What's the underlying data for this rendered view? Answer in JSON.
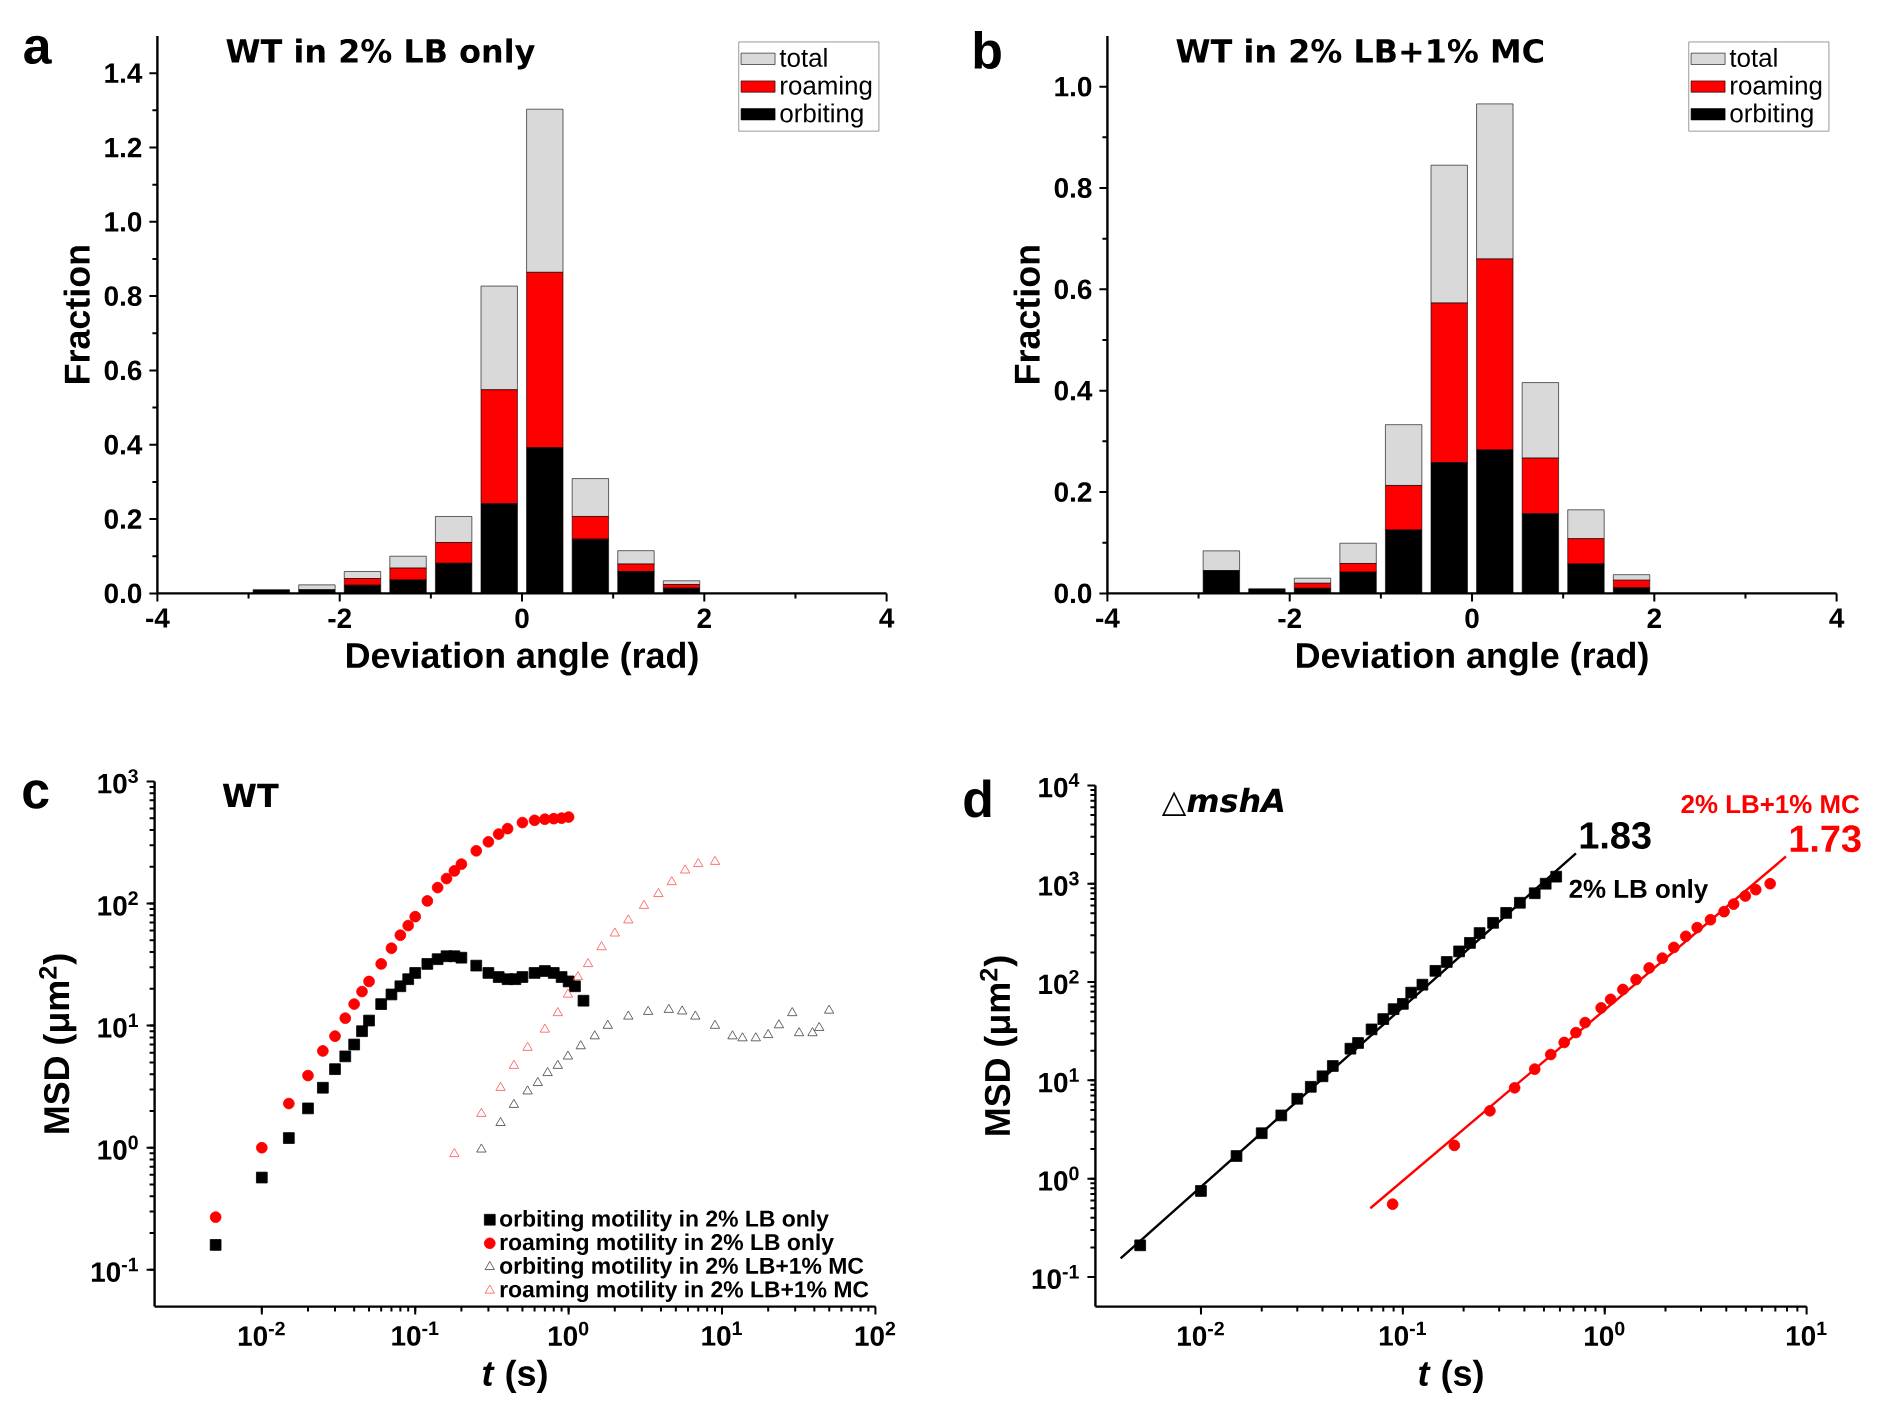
{
  "chart_data": [
    {
      "type": "bar",
      "title": "WT in 2% LB only",
      "xlabel": "Deviation angle (rad)",
      "ylabel": "Fraction",
      "annotations": [
        "a"
      ],
      "x": [
        -2.75,
        -2.25,
        -1.75,
        -1.25,
        -0.75,
        -0.25,
        0.25,
        0.75,
        1.25,
        1.75
      ],
      "series": [
        {
          "name": "orbiting",
          "color": "#000000",
          "values": [
            0.01,
            0.01,
            0.022,
            0.036,
            0.081,
            0.241,
            0.392,
            0.146,
            0.059,
            0.014
          ]
        },
        {
          "name": "roaming",
          "color": "#ff0000",
          "values": [
            null,
            null,
            0.018,
            0.032,
            0.056,
            0.307,
            0.472,
            0.061,
            0.02,
            0.01
          ]
        },
        {
          "name": "total",
          "color": "#d9d9d9",
          "values": [
            null,
            0.013,
            0.019,
            0.032,
            0.07,
            0.279,
            0.439,
            0.102,
            0.036,
            0.01
          ]
        }
      ],
      "stacked": true,
      "xlim": [
        -4,
        4
      ],
      "xticks": [
        -4,
        -2,
        0,
        2,
        4
      ],
      "ylim": [
        0,
        1.5
      ],
      "yticks": [
        {
          "value": 0,
          "label": "0.0"
        },
        0.2,
        0.4,
        0.6,
        0.8,
        {
          "value": 1,
          "label": "1.0"
        },
        1.2,
        1.4
      ],
      "legend": "top right"
    },
    {
      "type": "bar",
      "title": "WT in 2% LB+1% MC",
      "xlabel": "Deviation angle (rad)",
      "ylabel": "Fraction",
      "annotations": [
        "b"
      ],
      "x": [
        -2.75,
        -2.25,
        -1.75,
        -1.25,
        -0.75,
        -0.25,
        0.25,
        0.75,
        1.25,
        1.75
      ],
      "series": [
        {
          "name": "orbiting",
          "color": "#000000",
          "values": [
            0.045,
            0.009,
            0.01,
            0.042,
            0.125,
            0.258,
            0.283,
            0.157,
            0.058,
            0.011
          ]
        },
        {
          "name": "roaming",
          "color": "#ff0000",
          "values": [
            null,
            null,
            0.01,
            0.017,
            0.088,
            0.315,
            0.377,
            0.11,
            0.05,
            0.015
          ]
        },
        {
          "name": "total",
          "color": "#d9d9d9",
          "values": [
            0.039,
            null,
            0.01,
            0.04,
            0.12,
            0.272,
            0.306,
            0.149,
            0.057,
            0.011
          ]
        }
      ],
      "stacked": true,
      "xlim": [
        -4,
        4
      ],
      "xticks": [
        -4,
        -2,
        0,
        2,
        4
      ],
      "ylim": [
        0,
        1.1
      ],
      "yticks": [
        {
          "value": 0,
          "label": "0.0"
        },
        0.2,
        0.4,
        0.6,
        0.8,
        {
          "value": 1,
          "label": "1.0"
        }
      ],
      "legend": "top right"
    },
    {
      "type": "scatter",
      "title": "WT",
      "xlabel": "*t* (s)",
      "ylabel": "MSD (μm$^{2}$)",
      "annotations": [
        "c"
      ],
      "log": "xy",
      "series": [
        {
          "name": "orbiting motility in 2% LB only",
          "color": "#000000",
          "marker": "square",
          "x": [
            0.005,
            0.01,
            0.015,
            0.02,
            0.025,
            0.03,
            0.035,
            0.04,
            0.045,
            0.05,
            0.06,
            0.07,
            0.08,
            0.09,
            0.1,
            0.12,
            0.14,
            0.16,
            0.18,
            0.2,
            0.25,
            0.3,
            0.35,
            0.4,
            0.45,
            0.5,
            0.6,
            0.7,
            0.8,
            0.9,
            1.0,
            1.1,
            1.25
          ],
          "values": [
            0.16,
            0.57,
            1.2,
            2.1,
            3.1,
            4.4,
            5.6,
            7,
            9,
            11,
            15,
            18,
            21,
            24,
            27,
            32,
            35,
            37,
            37,
            36,
            31,
            27,
            25,
            24,
            24,
            25,
            27,
            28,
            27,
            25,
            23,
            21,
            16
          ]
        },
        {
          "name": "roaming motility in 2% LB only",
          "color": "#ff0000",
          "marker": "circle",
          "x": [
            0.005,
            0.01,
            0.015,
            0.02,
            0.025,
            0.03,
            0.035,
            0.04,
            0.045,
            0.05,
            0.06,
            0.07,
            0.08,
            0.09,
            0.1,
            0.12,
            0.14,
            0.16,
            0.18,
            0.2,
            0.25,
            0.3,
            0.35,
            0.4,
            0.5,
            0.6,
            0.7,
            0.8,
            0.9,
            1.0
          ],
          "values": [
            0.27,
            1.0,
            2.3,
            3.9,
            6.2,
            8.2,
            11.5,
            15,
            19,
            23,
            32,
            43,
            55,
            66,
            78,
            105,
            135,
            160,
            185,
            210,
            270,
            320,
            370,
            410,
            460,
            480,
            490,
            495,
            500,
            510
          ]
        },
        {
          "name": "orbiting motility in 2% LB+1% MC",
          "color": "#404040",
          "marker": "triangle",
          "x": [
            0.27,
            0.36,
            0.44,
            0.54,
            0.63,
            0.73,
            0.85,
            0.99,
            1.2,
            1.48,
            1.8,
            2.45,
            3.3,
            4.5,
            5.5,
            6.7,
            9.0,
            11.7,
            13.6,
            16.6,
            20,
            23.5,
            28.7,
            31.8,
            38.9,
            43,
            49.9
          ],
          "values": [
            0.97,
            1.6,
            2.25,
            2.9,
            3.4,
            4.1,
            4.7,
            5.6,
            6.8,
            8.2,
            10,
            11.9,
            13,
            13.5,
            13.1,
            11.9,
            10,
            8.2,
            7.9,
            7.9,
            8.4,
            10.1,
            12.7,
            8.7,
            8.7,
            9.6,
            13.3
          ]
        },
        {
          "name": "roaming motility in 2% LB+1% MC",
          "color": "#ff5050",
          "marker": "triangle",
          "x": [
            0.18,
            0.27,
            0.36,
            0.44,
            0.54,
            0.7,
            0.85,
            0.99,
            1.15,
            1.34,
            1.64,
            2.0,
            2.45,
            3.1,
            3.85,
            4.7,
            5.75,
            7.0,
            9.0
          ],
          "values": [
            0.89,
            1.9,
            3.1,
            4.7,
            6.6,
            9.3,
            12.7,
            18,
            25,
            32,
            44,
            57,
            73,
            96,
            120,
            150,
            187,
            211,
            220
          ]
        }
      ],
      "xlim": [
        0.002,
        100
      ],
      "xticks": [
        {
          "value": 0.01,
          "label": "10$^{-2}$"
        },
        {
          "value": 0.1,
          "label": "10$^{-1}$"
        },
        {
          "value": 1,
          "label": "10$^{0}$"
        },
        {
          "value": 10,
          "label": "10$^{1}$"
        },
        {
          "value": 100,
          "label": "10$^{2}$"
        }
      ],
      "ylim": [
        0.05,
        1000
      ],
      "yticks": [
        {
          "value": 0.1,
          "label": "10$^{-1}$"
        },
        {
          "value": 1,
          "label": "10$^{0}$"
        },
        {
          "value": 10,
          "label": "10$^{1}$"
        },
        {
          "value": 100,
          "label": "10$^{2}$"
        },
        {
          "value": 1000,
          "label": "10$^{3}$"
        }
      ],
      "legend": "bottom right"
    },
    {
      "type": "scatter",
      "title": "△*mshA*",
      "xlabel": "*t* (s)",
      "ylabel": "MSD (μm$^{2}$)",
      "annotations": [
        "d"
      ],
      "log": "xy",
      "series": [
        {
          "name": "1.83",
          "type": "line",
          "color": "#000000",
          "x": [
            0.004,
            0.72
          ],
          "values": [
            0.155,
            2040
          ]
        },
        {
          "name": "2% LB only",
          "color": "#000000",
          "marker": "square",
          "x": [
            0.005,
            0.01,
            0.015,
            0.02,
            0.025,
            0.03,
            0.035,
            0.04,
            0.045,
            0.055,
            0.06,
            0.07,
            0.08,
            0.09,
            0.1,
            0.11,
            0.125,
            0.145,
            0.165,
            0.19,
            0.215,
            0.24,
            0.28,
            0.325,
            0.38,
            0.45,
            0.51,
            0.575
          ],
          "values": [
            0.21,
            0.75,
            1.7,
            2.9,
            4.4,
            6.5,
            8.6,
            11,
            14,
            21,
            24,
            33,
            42,
            53,
            60,
            78,
            94,
            130,
            160,
            205,
            250,
            315,
            400,
            505,
            640,
            800,
            1000,
            1180
          ]
        },
        {
          "name": "1.73",
          "type": "line",
          "color": "#ff0000",
          "x": [
            0.069,
            7.9
          ],
          "values": [
            0.5,
            1890
          ]
        },
        {
          "name": "2% LB+1% MC",
          "color": "#ff0000",
          "marker": "circle",
          "x": [
            0.089,
            0.18,
            0.27,
            0.358,
            0.45,
            0.54,
            0.63,
            0.72,
            0.8,
            0.96,
            1.07,
            1.23,
            1.43,
            1.66,
            1.93,
            2.2,
            2.52,
            2.87,
            3.34,
            3.9,
            4.35,
            4.97,
            5.6,
            6.6
          ],
          "values": [
            0.55,
            2.18,
            4.9,
            8.4,
            13,
            18.3,
            24.3,
            30.6,
            38.7,
            54.6,
            66.7,
            84,
            106,
            139,
            175,
            225,
            292,
            358,
            430,
            520,
            620,
            750,
            870,
            1000
          ]
        }
      ],
      "xlim": [
        0.003,
        10
      ],
      "xticks": [
        {
          "value": 0.01,
          "label": "10$^{-2}$"
        },
        {
          "value": 0.1,
          "label": "10$^{-1}$"
        },
        {
          "value": 1,
          "label": "10$^{0}$"
        },
        {
          "value": 10,
          "label": "10$^{1}$"
        }
      ],
      "ylim": [
        0.05,
        10000
      ],
      "yticks": [
        {
          "value": 0.1,
          "label": "10$^{-1}$"
        },
        {
          "value": 1,
          "label": "10$^{0}$"
        },
        {
          "value": 10,
          "label": "10$^{1}$"
        },
        {
          "value": 100,
          "label": "10$^{2}$"
        },
        {
          "value": 1000,
          "label": "10$^{3}$"
        },
        {
          "value": 10000,
          "label": "10$^{4}$"
        }
      ]
    }
  ]
}
